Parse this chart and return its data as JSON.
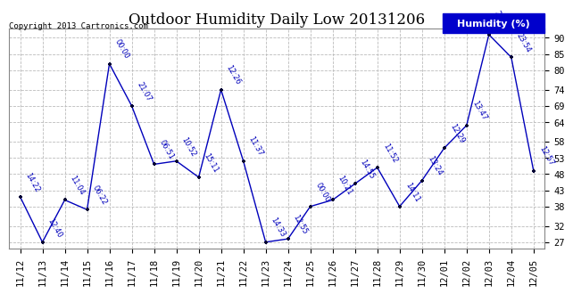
{
  "title": "Outdoor Humidity Daily Low 20131206",
  "copyright": "Copyright 2013 Cartronics.com",
  "legend_label": "Humidity (%)",
  "ylabel_ticks": [
    27,
    32,
    38,
    43,
    48,
    53,
    58,
    64,
    69,
    74,
    80,
    85,
    90
  ],
  "ylim": [
    25,
    93
  ],
  "xlabels": [
    "11/12",
    "11/13",
    "11/14",
    "11/15",
    "11/16",
    "11/17",
    "11/18",
    "11/19",
    "11/20",
    "11/21",
    "11/22",
    "11/23",
    "11/24",
    "11/25",
    "11/26",
    "11/27",
    "11/28",
    "11/29",
    "11/30",
    "12/01",
    "12/02",
    "12/03",
    "12/04",
    "12/05"
  ],
  "x_indices": [
    0,
    1,
    2,
    3,
    4,
    5,
    6,
    7,
    8,
    9,
    10,
    11,
    12,
    13,
    14,
    15,
    16,
    17,
    18,
    19,
    20,
    21,
    22,
    23
  ],
  "values": [
    41,
    27,
    40,
    37,
    82,
    69,
    51,
    52,
    47,
    74,
    52,
    27,
    28,
    38,
    40,
    45,
    50,
    38,
    46,
    56,
    63,
    91,
    84,
    49
  ],
  "time_labels": [
    "14:22",
    "12:40",
    "11:04",
    "06:22",
    "00:00",
    "21:07",
    "06:51",
    "10:52",
    "15:11",
    "12:26",
    "11:37",
    "14:33",
    "12:55",
    "00:00",
    "10:21",
    "14:55",
    "11:52",
    "14:11",
    "13:24",
    "12:29",
    "13:47",
    "23:41",
    "23:54",
    "12:57"
  ],
  "line_color": "#0000bb",
  "marker_color": "#000033",
  "background_color": "#ffffff",
  "grid_color": "#bbbbbb",
  "title_fontsize": 12,
  "tick_fontsize": 7.5,
  "annot_fontsize": 6,
  "legend_bg": "#0000cc",
  "legend_fg": "#ffffff",
  "legend_fontsize": 8
}
